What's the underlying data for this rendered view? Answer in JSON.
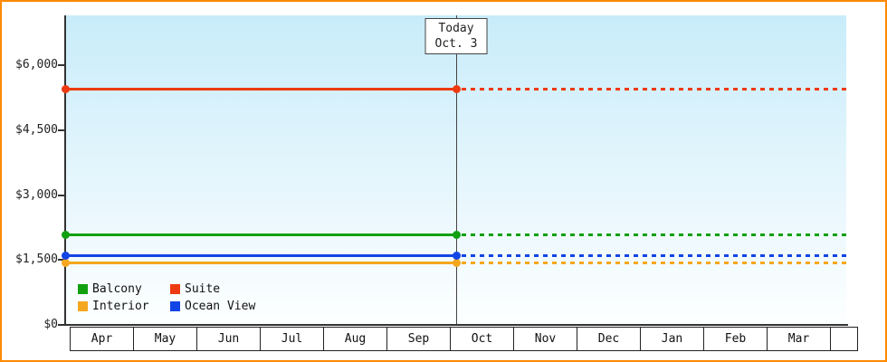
{
  "chart_data": {
    "type": "line",
    "title": "",
    "y_axis": {
      "max": 7150,
      "ticks": [
        {
          "value": 0,
          "label": "$0"
        },
        {
          "value": 1500,
          "label": "$1,500"
        },
        {
          "value": 3000,
          "label": "$3,000"
        },
        {
          "value": 4500,
          "label": "$4,500"
        },
        {
          "value": 6000,
          "label": "$6,000"
        }
      ]
    },
    "months": [
      "Apr",
      "May",
      "Jun",
      "Jul",
      "Aug",
      "Sep",
      "Oct",
      "Nov",
      "Dec",
      "Jan",
      "Feb",
      "Mar"
    ],
    "today": {
      "line1": "Today",
      "line2": "Oct. 3",
      "month_index": 6,
      "day_fraction": 0.1
    },
    "series": [
      {
        "name": "Balcony",
        "color": "#10a010",
        "value": 2100
      },
      {
        "name": "Suite",
        "color": "#ee3a10",
        "value": 5450
      },
      {
        "name": "Interior",
        "color": "#f5a71f",
        "value": 1450
      },
      {
        "name": "Ocean View",
        "color": "#1245e6",
        "value": 1600
      }
    ],
    "line_style": {
      "before_today": "solid",
      "after_today": "dashed"
    },
    "legend_position": "bottom-left",
    "theme": {
      "frame_border": "#ff8a00",
      "axis_color": "#333333",
      "today_line_color": "#444444",
      "plot_bg_top": "#c8ecfa",
      "plot_bg_bottom": "#fdffff"
    }
  }
}
